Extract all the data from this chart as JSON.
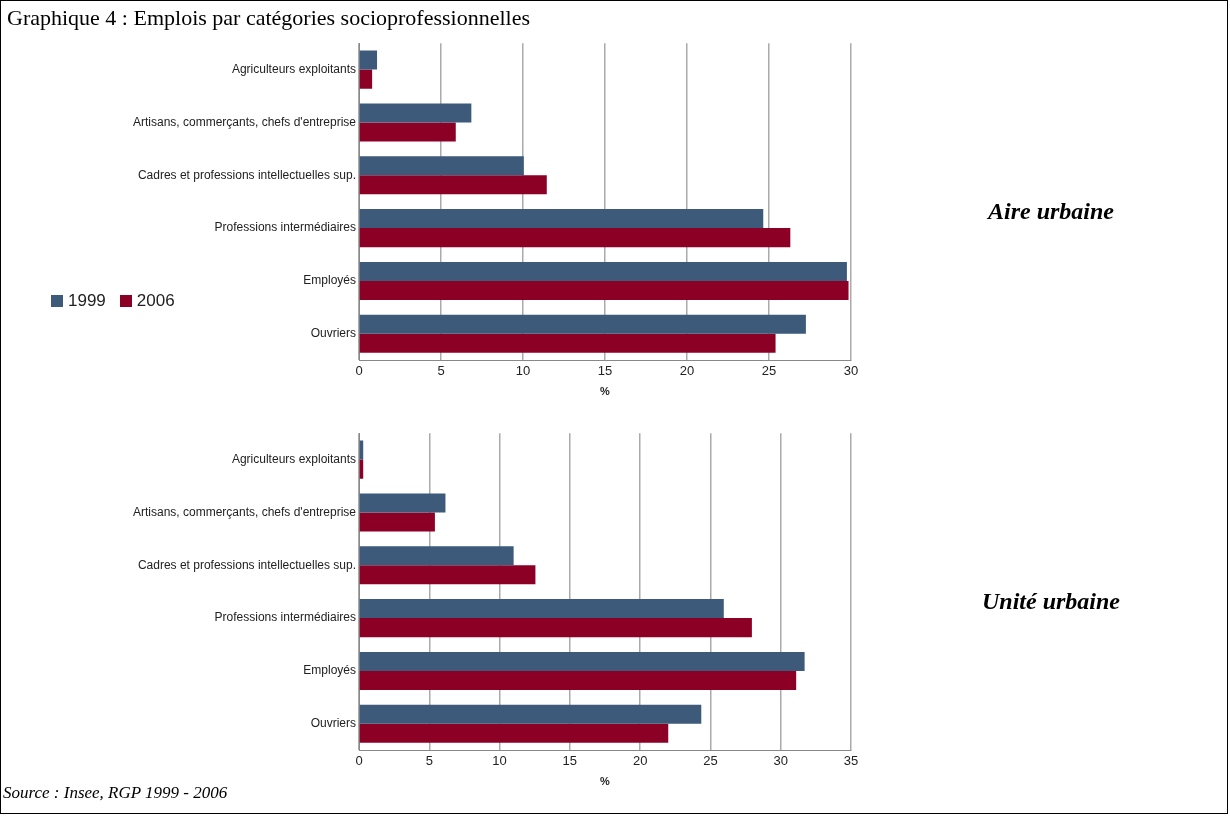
{
  "chart_data": [
    {
      "type": "bar",
      "orientation": "horizontal",
      "title": "Graphique 4 : Emplois par catégories socioprofessionnelles",
      "xlabel": "%",
      "categories": [
        "Agriculteurs exploitants",
        "Artisans, commerçants, chefs d'entreprise",
        "Cadres et professions intellectuelles sup.",
        "Professions intermédiaires",
        "Employés",
        "Ouvriers"
      ],
      "series": [
        {
          "name": "1999",
          "color": "#3d5a7a",
          "values": [
            1.1,
            6.85,
            10.05,
            24.65,
            29.75,
            27.25
          ]
        },
        {
          "name": "2006",
          "color": "#8c0026",
          "values": [
            0.8,
            5.9,
            11.45,
            26.3,
            29.85,
            25.4
          ]
        }
      ],
      "xlim": [
        0,
        30
      ],
      "xticks": [
        0,
        5,
        10,
        15,
        20,
        25,
        30
      ],
      "grid": "x",
      "legend": "left",
      "annotations": [
        "Aire urbaine"
      ]
    },
    {
      "type": "bar",
      "orientation": "horizontal",
      "xlabel": "%",
      "categories": [
        "Agriculteurs exploitants",
        "Artisans, commerçants, chefs d'entreprise",
        "Cadres et professions intellectuelles sup.",
        "Professions intermédiaires",
        "Employés",
        "Ouvriers"
      ],
      "series": [
        {
          "name": "1999",
          "color": "#3d5a7a",
          "values": [
            0.3,
            6.15,
            11.0,
            25.95,
            31.7,
            24.35
          ]
        },
        {
          "name": "2006",
          "color": "#8c0026",
          "values": [
            0.3,
            5.4,
            12.55,
            27.95,
            31.1,
            22.0
          ]
        }
      ],
      "xlim": [
        0,
        35
      ],
      "xticks": [
        0,
        5,
        10,
        15,
        20,
        25,
        30,
        35
      ],
      "grid": "x",
      "annotations": [
        "Unité urbaine",
        "Source : Insee, RGP 1999 - 2006"
      ]
    }
  ]
}
